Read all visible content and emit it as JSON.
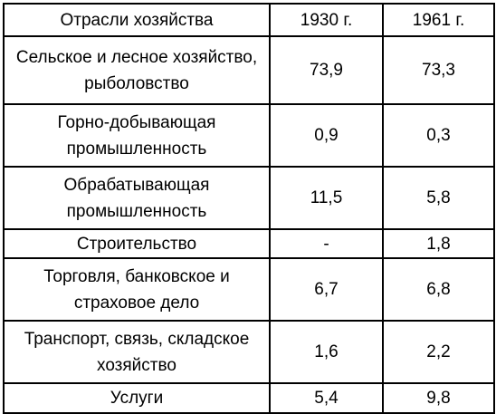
{
  "table": {
    "headers": [
      "Отрасли хозяйства",
      "1930 г.",
      "1961 г."
    ],
    "rows": [
      {
        "sector": "Сельское и лесное хозяйство, рыболовство",
        "y1930": "73,9",
        "y1961": "73,3"
      },
      {
        "sector": "Горно-добывающая промышленность",
        "y1930": "0,9",
        "y1961": "0,3"
      },
      {
        "sector": "Обрабатывающая промышленность",
        "y1930": "11,5",
        "y1961": "5,8"
      },
      {
        "sector": "Строительство",
        "y1930": "-",
        "y1961": "1,8"
      },
      {
        "sector": "Торговля, банковское и страховое дело",
        "y1930": "6,7",
        "y1961": "6,8"
      },
      {
        "sector": "Транспорт, связь, складское хозяйство",
        "y1930": "1,6",
        "y1961": "2,2"
      },
      {
        "sector": "Услуги",
        "y1930": "5,4",
        "y1961": "9,8"
      }
    ]
  }
}
